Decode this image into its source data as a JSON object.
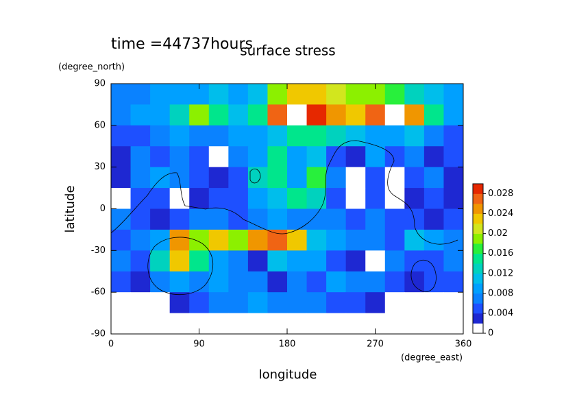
{
  "chart_data": {
    "type": "contour",
    "title": "surface stress",
    "subtitle": "time =44737hours",
    "x_label": "longitude",
    "x_units": "(degree_east)",
    "y_label": "latitude",
    "y_units": "(degree_north)",
    "xlim": [
      0,
      360
    ],
    "ylim": [
      -90,
      90
    ],
    "xticks": [
      0,
      90,
      180,
      270,
      360
    ],
    "yticks": [
      -90,
      -60,
      -30,
      0,
      30,
      60,
      90
    ],
    "x": [
      10,
      30,
      50,
      70,
      90,
      110,
      130,
      150,
      170,
      190,
      210,
      230,
      250,
      270,
      290,
      310,
      330,
      350
    ],
    "y": [
      82.5,
      67.5,
      52.5,
      37.5,
      22.5,
      7.5,
      -7.5,
      -22.5,
      -37.5,
      -52.5,
      -67.5,
      -82.5
    ],
    "z": [
      [
        0.006,
        0.006,
        0.008,
        0.008,
        0.008,
        0.01,
        0.008,
        0.01,
        0.018,
        0.022,
        0.022,
        0.02,
        0.018,
        0.018,
        0.016,
        0.012,
        0.01,
        0.008
      ],
      [
        0.006,
        0.008,
        0.008,
        0.012,
        0.018,
        0.014,
        0.01,
        0.014,
        0.026,
        0.032,
        0.028,
        0.024,
        0.022,
        0.026,
        0.032,
        0.024,
        0.014,
        0.008
      ],
      [
        0.004,
        0.004,
        0.006,
        0.008,
        0.006,
        0.006,
        0.008,
        0.008,
        0.01,
        0.014,
        0.014,
        0.012,
        0.01,
        0.008,
        0.008,
        0.01,
        0.006,
        0.004
      ],
      [
        0.002,
        0.006,
        0.004,
        0.006,
        0.004,
        0,
        0.006,
        0.008,
        0.014,
        0.008,
        0.01,
        0.004,
        0.002,
        0.008,
        0.004,
        0.006,
        0.002,
        0.004
      ],
      [
        0.002,
        0.006,
        0.008,
        0.006,
        0.004,
        0.002,
        0.004,
        0.012,
        0.014,
        0.008,
        0.016,
        0.006,
        0,
        0.004,
        0,
        0.004,
        0.006,
        0.002
      ],
      [
        0,
        0.004,
        0.004,
        0,
        0.002,
        0.004,
        0.004,
        0.008,
        0.01,
        0.014,
        0.012,
        0.004,
        0,
        0.004,
        0,
        0.002,
        0.004,
        0.002
      ],
      [
        0.006,
        0.004,
        0.002,
        0.004,
        0.006,
        0.006,
        0.004,
        0.006,
        0.008,
        0.006,
        0.006,
        0.006,
        0.004,
        0.006,
        0.004,
        0.004,
        0.002,
        0.004
      ],
      [
        0.004,
        0.006,
        0.008,
        0.024,
        0.018,
        0.022,
        0.018,
        0.024,
        0.026,
        0.022,
        0.01,
        0.008,
        0.006,
        0.006,
        0.004,
        0.01,
        0.008,
        0.006
      ],
      [
        0.006,
        0.004,
        0.012,
        0.022,
        0.014,
        0.008,
        0.006,
        0.002,
        0.01,
        0.008,
        0.008,
        0.004,
        0.002,
        0,
        0.006,
        0.004,
        0.004,
        0.006
      ],
      [
        0.004,
        0.002,
        0.006,
        0.008,
        0.006,
        0.008,
        0.006,
        0.006,
        0.002,
        0.006,
        0.004,
        0.008,
        0.006,
        0.006,
        0.004,
        0.002,
        0.004,
        0.004
      ],
      [
        0,
        0,
        0,
        0.002,
        0.004,
        0.006,
        0.006,
        0.008,
        0.006,
        0.006,
        0.006,
        0.004,
        0.004,
        0.002,
        0,
        0,
        0,
        0
      ],
      [
        0,
        0,
        0,
        0,
        0,
        0,
        0,
        0,
        0,
        0,
        0,
        0,
        0,
        0,
        0,
        0,
        0,
        0
      ]
    ],
    "levels": [
      0,
      0.002,
      0.004,
      0.006,
      0.008,
      0.01,
      0.012,
      0.014,
      0.016,
      0.018,
      0.02,
      0.022,
      0.024,
      0.026,
      0.028,
      0.03
    ],
    "colors": [
      "#ffffff",
      "#1e28d2",
      "#1e50ff",
      "#0a82ff",
      "#00a0ff",
      "#00beeb",
      "#00d2be",
      "#00e68c",
      "#28f03c",
      "#8cf000",
      "#d2e61e",
      "#f0c800",
      "#f09600",
      "#f06414",
      "#e62800"
    ],
    "over_color": "#ffffff",
    "cbar_ticks": [
      0,
      0.004,
      0.008,
      0.012,
      0.016,
      0.02,
      0.024,
      0.028
    ]
  }
}
